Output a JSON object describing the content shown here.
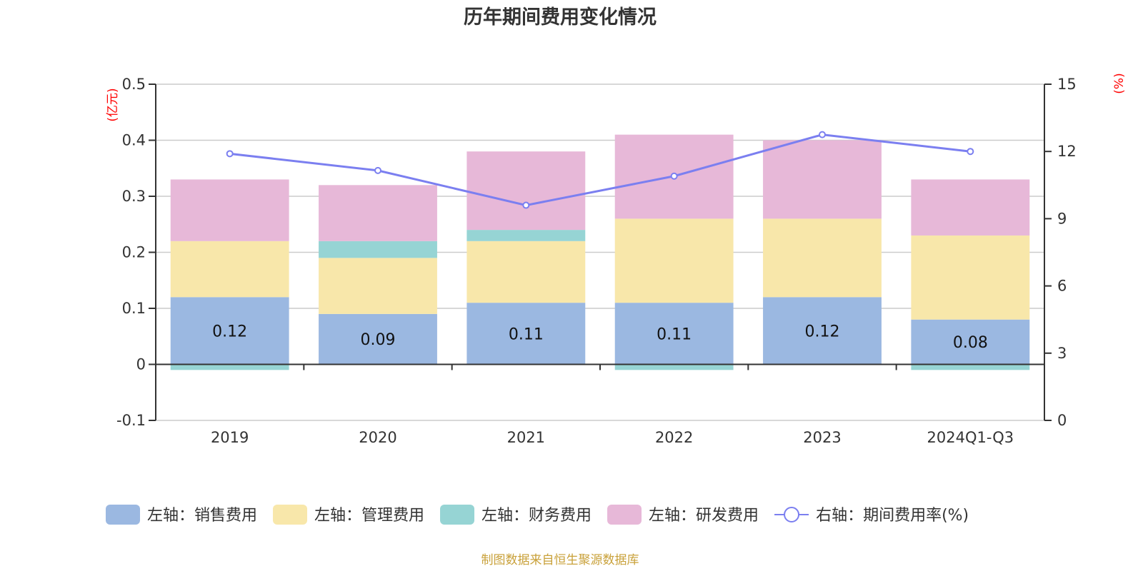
{
  "chart_data": {
    "type": "bar",
    "stacked": true,
    "title": "历年期间费用变化情况",
    "source_note": "制图数据来自恒生聚源数据库",
    "categories": [
      "2019",
      "2020",
      "2021",
      "2022",
      "2023",
      "2024Q1-Q3"
    ],
    "left_axis": {
      "unit_label": "(亿元)",
      "range": [
        -0.1,
        0.5
      ],
      "ticks": [
        "-0.1",
        "0",
        "0.1",
        "0.2",
        "0.3",
        "0.4",
        "0.5"
      ],
      "tick_values": [
        -0.1,
        0,
        0.1,
        0.2,
        0.3,
        0.4,
        0.5
      ]
    },
    "right_axis": {
      "unit_label": "(%)",
      "range": [
        0,
        15
      ],
      "ticks": [
        "0",
        "3",
        "6",
        "9",
        "12",
        "15"
      ],
      "tick_values": [
        0,
        3,
        6,
        9,
        12,
        15
      ]
    },
    "grid": true,
    "legend_position": "bottom",
    "series": [
      {
        "name": "左轴：销售费用",
        "type": "bar",
        "axis": "left",
        "color": "#9bb8e1",
        "values": [
          0.12,
          0.09,
          0.11,
          0.11,
          0.12,
          0.08
        ],
        "show_labels": true,
        "labels": [
          "0.12",
          "0.09",
          "0.11",
          "0.11",
          "0.12",
          "0.08"
        ]
      },
      {
        "name": "左轴：管理费用",
        "type": "bar",
        "axis": "left",
        "color": "#f8e7aa",
        "values": [
          0.1,
          0.1,
          0.11,
          0.15,
          0.14,
          0.15
        ]
      },
      {
        "name": "左轴：财务费用",
        "type": "bar",
        "axis": "left",
        "color": "#96d4d4",
        "values": [
          -0.01,
          0.03,
          0.02,
          -0.01,
          0.0,
          -0.01
        ]
      },
      {
        "name": "左轴：研发费用",
        "type": "bar",
        "axis": "left",
        "color": "#e7b8d8",
        "values": [
          0.11,
          0.1,
          0.14,
          0.15,
          0.14,
          0.1
        ]
      },
      {
        "name": "右轴：期间费用率(%)",
        "type": "line",
        "axis": "right",
        "color": "#7b7ff0",
        "values": [
          11.9,
          11.15,
          9.6,
          10.9,
          12.75,
          12.0
        ]
      }
    ]
  }
}
